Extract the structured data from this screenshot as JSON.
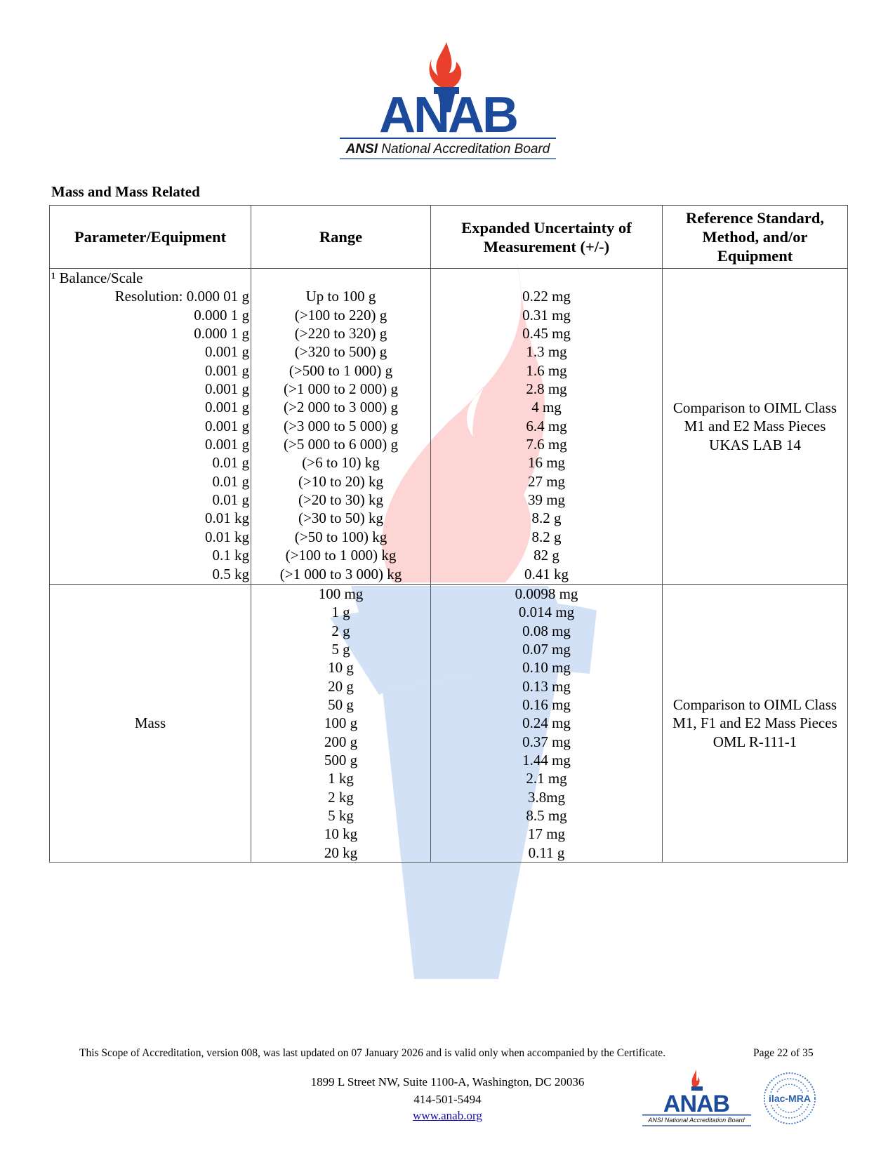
{
  "logo": {
    "wordmark": "ANAB",
    "tagline": "ANSI National Accreditation Board"
  },
  "section_title": "Mass and Mass Related",
  "table": {
    "headers": [
      "Parameter/Equipment",
      "Range",
      "Expanded Uncertainty of Measurement (+/-)",
      "Reference Standard, Method, and/or Equipment"
    ],
    "balance": {
      "parameter": "¹ Balance/Scale",
      "rows": [
        {
          "resolution": "Resolution: 0.000 01 g",
          "range": "Up to 100 g",
          "uncertainty": "0.22 mg"
        },
        {
          "resolution": "0.000 1 g",
          "range": "(>100 to 220) g",
          "uncertainty": "0.31 mg"
        },
        {
          "resolution": "0.000 1 g",
          "range": "(>220 to 320) g",
          "uncertainty": "0.45 mg"
        },
        {
          "resolution": "0.001 g",
          "range": "(>320 to 500) g",
          "uncertainty": "1.3 mg"
        },
        {
          "resolution": "0.001 g",
          "range": "(>500 to 1 000) g",
          "uncertainty": "1.6 mg"
        },
        {
          "resolution": "0.001 g",
          "range": "(>1 000 to 2 000) g",
          "uncertainty": "2.8 mg"
        },
        {
          "resolution": "0.001 g",
          "range": "(>2 000 to 3 000) g",
          "uncertainty": "4 mg"
        },
        {
          "resolution": "0.001 g",
          "range": "(>3 000 to 5 000) g",
          "uncertainty": "6.4 mg"
        },
        {
          "resolution": "0.001 g",
          "range": "(>5 000 to 6 000) g",
          "uncertainty": "7.6 mg"
        },
        {
          "resolution": "0.01 g",
          "range": "(>6 to 10) kg",
          "uncertainty": "16 mg"
        },
        {
          "resolution": "0.01 g",
          "range": "(>10 to 20) kg",
          "uncertainty": "27 mg"
        },
        {
          "resolution": "0.01 g",
          "range": "(>20 to 30) kg",
          "uncertainty": "39 mg"
        },
        {
          "resolution": "0.01 kg",
          "range": "(>30 to 50) kg",
          "uncertainty": "8.2 g"
        },
        {
          "resolution": "0.01 kg",
          "range": "(>50 to 100) kg",
          "uncertainty": "8.2 g"
        },
        {
          "resolution": "0.1 kg",
          "range": "(>100 to 1 000) kg",
          "uncertainty": "82 g"
        },
        {
          "resolution": "0.5 kg",
          "range": "(>1 000 to 3 000) kg",
          "uncertainty": "0.41 kg"
        }
      ],
      "reference": [
        "Comparison to OIML Class",
        "M1 and E2 Mass Pieces",
        "UKAS LAB 14"
      ]
    },
    "mass": {
      "parameter": "Mass",
      "rows": [
        {
          "range": "100 mg",
          "uncertainty": "0.0098 mg"
        },
        {
          "range": "1 g",
          "uncertainty": "0.014 mg"
        },
        {
          "range": "2 g",
          "uncertainty": "0.08 mg"
        },
        {
          "range": "5 g",
          "uncertainty": "0.07 mg"
        },
        {
          "range": "10 g",
          "uncertainty": "0.10 mg"
        },
        {
          "range": "20 g",
          "uncertainty": "0.13 mg"
        },
        {
          "range": "50 g",
          "uncertainty": "0.16 mg"
        },
        {
          "range": "100 g",
          "uncertainty": "0.24 mg"
        },
        {
          "range": "200 g",
          "uncertainty": "0.37 mg"
        },
        {
          "range": "500 g",
          "uncertainty": "1.44 mg"
        },
        {
          "range": "1 kg",
          "uncertainty": "2.1 mg"
        },
        {
          "range": "2 kg",
          "uncertainty": "3.8mg"
        },
        {
          "range": "5 kg",
          "uncertainty": "8.5 mg"
        },
        {
          "range": "10 kg",
          "uncertainty": "17 mg"
        },
        {
          "range": "20 kg",
          "uncertainty": "0.11 g"
        }
      ],
      "reference": [
        "Comparison to OIML Class",
        "M1, F1 and E2 Mass Pieces",
        "OML R-111-1"
      ]
    }
  },
  "footer": {
    "note": "This Scope of Accreditation, version 008, was last updated on 07 January 2026 and is valid only when accompanied by the Certificate.",
    "page": "Page 22 of 35",
    "address": "1899 L Street NW, Suite 1100-A, Washington, DC  20036",
    "phone": "414-501-5494",
    "website": "www.anab.org",
    "ilac_logo": "ilac-MRA"
  },
  "colors": {
    "brand_blue": "#1b4a9a",
    "flame_red": "#e8402a"
  }
}
